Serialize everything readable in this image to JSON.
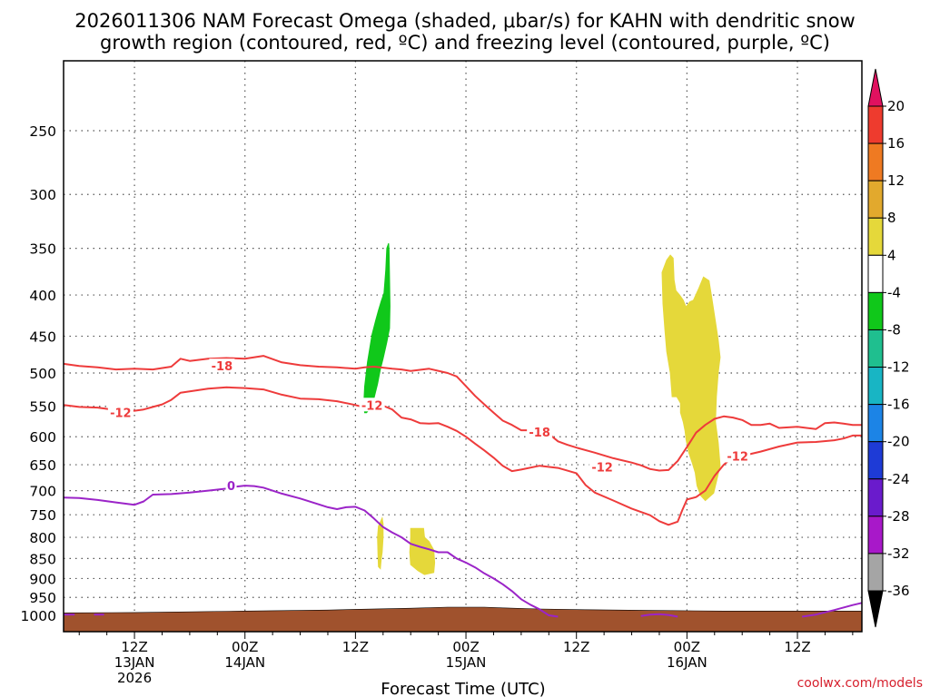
{
  "chart_data": {
    "type": "time-height",
    "title": [
      "2026011306 NAM Forecast Omega (shaded, μbar/s) for KAHN with dendritic snow",
      "growth region (contoured, red, ºC) and freezing level (contoured, purple, ºC)"
    ],
    "xlabel": "Forecast Time (UTC)",
    "credit": "coolwx.com/models",
    "xlim_hours": [
      -1.7,
      85
    ],
    "ylim_hpa": [
      1010,
      180
    ],
    "yticks": [
      250,
      300,
      350,
      400,
      450,
      500,
      550,
      600,
      650,
      700,
      750,
      800,
      850,
      900,
      950,
      1000
    ],
    "xticks": [
      {
        "hour": 6,
        "labels": [
          "12Z",
          "13JAN",
          "2026"
        ]
      },
      {
        "hour": 18,
        "labels": [
          "00Z",
          "14JAN"
        ]
      },
      {
        "hour": 30,
        "labels": [
          "12Z"
        ]
      },
      {
        "hour": 42,
        "labels": [
          "00Z",
          "15JAN"
        ]
      },
      {
        "hour": 54,
        "labels": [
          "12Z"
        ]
      },
      {
        "hour": 66,
        "labels": [
          "00Z",
          "16JAN"
        ]
      },
      {
        "hour": 78,
        "labels": [
          "12Z"
        ]
      }
    ],
    "colorbar": {
      "labels": [
        "20",
        "16",
        "12",
        "8",
        "4",
        "-4",
        "-8",
        "-12",
        "-16",
        "-20",
        "-24",
        "-28",
        "-32",
        "-36"
      ],
      "colors": [
        "#e0115f",
        "#ee3b2e",
        "#ef7a22",
        "#e2a92d",
        "#e5d83a",
        "#ffffff",
        "#10c81a",
        "#1fbf8f",
        "#18b5c4",
        "#1c84e6",
        "#1e3bd6",
        "#6a1bcc",
        "#a818c9",
        "#a5a5a5",
        "#000000"
      ]
    },
    "series": [
      {
        "name": "-18",
        "color": "#ee3b3b",
        "label_at": {
          "hour": 15.5,
          "p": 490
        },
        "points": [
          [
            -1.7,
            487
          ],
          [
            0,
            490
          ],
          [
            2,
            492
          ],
          [
            4,
            495
          ],
          [
            6,
            494
          ],
          [
            8,
            495
          ],
          [
            10,
            491
          ],
          [
            11,
            480
          ],
          [
            12,
            483
          ],
          [
            14,
            480
          ],
          [
            16,
            479
          ],
          [
            18,
            480
          ],
          [
            20,
            476
          ],
          [
            22,
            485
          ],
          [
            24,
            489
          ],
          [
            26,
            491
          ],
          [
            28,
            492
          ],
          [
            30,
            494
          ],
          [
            31,
            492
          ],
          [
            32,
            491
          ],
          [
            34,
            494
          ],
          [
            35,
            495
          ],
          [
            36,
            497
          ],
          [
            38,
            494
          ],
          [
            40,
            500
          ],
          [
            41,
            505
          ],
          [
            42,
            519
          ],
          [
            43,
            534
          ],
          [
            44,
            547
          ],
          [
            45,
            560
          ],
          [
            46,
            573
          ],
          [
            47,
            580
          ],
          [
            48,
            589
          ],
          [
            50,
            589
          ],
          [
            51,
            595
          ],
          [
            52,
            608
          ],
          [
            53,
            614
          ],
          [
            54,
            619
          ],
          [
            56,
            628
          ],
          [
            58,
            638
          ],
          [
            60,
            646
          ],
          [
            61,
            651
          ],
          [
            62,
            658
          ],
          [
            63,
            661
          ],
          [
            64,
            660
          ],
          [
            65,
            643
          ],
          [
            66,
            618
          ],
          [
            67,
            593
          ],
          [
            68,
            580
          ],
          [
            69,
            570
          ],
          [
            70,
            566
          ],
          [
            71,
            568
          ],
          [
            72,
            572
          ],
          [
            73,
            580
          ],
          [
            74,
            580
          ],
          [
            75,
            578
          ],
          [
            76,
            585
          ],
          [
            78,
            583
          ],
          [
            80,
            587
          ],
          [
            81,
            577
          ],
          [
            82,
            576
          ],
          [
            83,
            578
          ],
          [
            84,
            580
          ],
          [
            85,
            580
          ]
        ]
      },
      {
        "name": "-12",
        "color": "#ee3b3b",
        "label_at": {
          "hour": 4.5,
          "p": 560
        },
        "points": [
          [
            -1.7,
            548
          ],
          [
            0,
            551
          ],
          [
            2,
            552
          ],
          [
            4,
            556
          ],
          [
            6,
            557
          ],
          [
            7,
            555
          ],
          [
            8,
            551
          ],
          [
            9,
            547
          ],
          [
            10,
            540
          ],
          [
            11,
            529
          ],
          [
            12,
            527
          ],
          [
            14,
            523
          ],
          [
            16,
            521
          ],
          [
            18,
            522
          ],
          [
            20,
            524
          ],
          [
            22,
            532
          ],
          [
            24,
            538
          ],
          [
            26,
            539
          ],
          [
            28,
            542
          ],
          [
            30,
            548
          ],
          [
            31,
            552
          ],
          [
            32,
            551
          ],
          [
            33,
            549
          ],
          [
            34,
            555
          ],
          [
            35,
            568
          ],
          [
            36,
            571
          ],
          [
            37,
            577
          ],
          [
            38,
            578
          ],
          [
            39,
            577
          ],
          [
            40,
            583
          ],
          [
            41,
            590
          ],
          [
            42,
            600
          ],
          [
            43,
            612
          ],
          [
            44,
            624
          ],
          [
            45,
            637
          ],
          [
            46,
            652
          ],
          [
            47,
            662
          ],
          [
            48,
            659
          ],
          [
            50,
            652
          ],
          [
            52,
            656
          ],
          [
            54,
            666
          ],
          [
            55,
            689
          ],
          [
            56,
            704
          ],
          [
            58,
            720
          ],
          [
            60,
            737
          ],
          [
            62,
            751
          ],
          [
            63,
            764
          ],
          [
            64,
            772
          ],
          [
            65,
            765
          ],
          [
            65.5,
            740
          ],
          [
            66,
            718
          ],
          [
            67,
            713
          ],
          [
            68,
            700
          ],
          [
            69,
            671
          ],
          [
            70,
            650
          ],
          [
            71,
            636
          ],
          [
            72,
            634
          ],
          [
            73,
            630
          ],
          [
            74,
            626
          ],
          [
            76,
            617
          ],
          [
            78,
            610
          ],
          [
            80,
            609
          ],
          [
            82,
            606
          ],
          [
            83,
            603
          ],
          [
            84,
            598
          ],
          [
            85,
            598
          ]
        ]
      },
      {
        "name": "0",
        "color": "#9b24c8",
        "label_at": {
          "hour": 16.5,
          "p": 690
        },
        "points": [
          [
            -1.7,
            714
          ],
          [
            0,
            715
          ],
          [
            2,
            719
          ],
          [
            4,
            724
          ],
          [
            6,
            729
          ],
          [
            7,
            722
          ],
          [
            8,
            708
          ],
          [
            10,
            707
          ],
          [
            12,
            704
          ],
          [
            14,
            700
          ],
          [
            16,
            696
          ],
          [
            17,
            692
          ],
          [
            18,
            690
          ],
          [
            19,
            691
          ],
          [
            20,
            694
          ],
          [
            22,
            706
          ],
          [
            24,
            716
          ],
          [
            26,
            728
          ],
          [
            27,
            734
          ],
          [
            28,
            738
          ],
          [
            29,
            734
          ],
          [
            30,
            733
          ],
          [
            31,
            741
          ],
          [
            32,
            758
          ],
          [
            33,
            777
          ],
          [
            34,
            789
          ],
          [
            35,
            800
          ],
          [
            36,
            815
          ],
          [
            37,
            822
          ],
          [
            38,
            828
          ],
          [
            39,
            835
          ],
          [
            40,
            835
          ],
          [
            41,
            850
          ],
          [
            42,
            860
          ],
          [
            43,
            872
          ],
          [
            44,
            887
          ],
          [
            45,
            900
          ],
          [
            46,
            915
          ],
          [
            47,
            933
          ],
          [
            48,
            955
          ],
          [
            49,
            970
          ],
          [
            50,
            983
          ],
          [
            51,
            1000
          ],
          [
            52,
            1004
          ]
        ]
      },
      {
        "name": "0b",
        "color": "#9b24c8",
        "points": [
          [
            61,
            1002
          ],
          [
            62,
            998
          ],
          [
            63,
            997
          ],
          [
            64,
            999
          ],
          [
            65,
            1004
          ]
        ]
      },
      {
        "name": "0c",
        "color": "#9b24c8",
        "points": [
          [
            78.5,
            1004
          ],
          [
            80,
            998
          ],
          [
            82,
            985
          ],
          [
            84,
            971
          ],
          [
            85,
            965
          ]
        ]
      },
      {
        "name": "0d",
        "color": "#9b24c8",
        "points": [
          [
            -1.7,
            998
          ],
          [
            -0.5,
            998
          ]
        ]
      },
      {
        "name": "0e",
        "color": "#9b24c8",
        "points": [
          [
            1.6,
            998
          ],
          [
            2.7,
            998
          ]
        ]
      }
    ],
    "omega_areas": [
      {
        "value": -8,
        "color": "#10c81a",
        "points": [
          [
            30.9,
            548
          ],
          [
            31,
            520
          ],
          [
            31.3,
            485
          ],
          [
            31.8,
            448
          ],
          [
            32.2,
            430
          ],
          [
            32.5,
            418
          ],
          [
            32.8,
            407
          ],
          [
            33.1,
            398
          ],
          [
            33.2,
            385
          ],
          [
            33.3,
            372
          ],
          [
            33.4,
            350
          ],
          [
            33.6,
            345
          ],
          [
            33.65,
            352
          ],
          [
            33.7,
            380
          ],
          [
            33.75,
            413
          ],
          [
            33.7,
            440
          ],
          [
            33.4,
            458
          ],
          [
            33.0,
            480
          ],
          [
            32.7,
            495
          ],
          [
            32.4,
            516
          ],
          [
            32.0,
            538
          ],
          [
            31.6,
            553
          ],
          [
            31.2,
            560
          ],
          [
            31.0,
            560
          ]
        ]
      },
      {
        "value": 4,
        "color": "#e5d83a",
        "points": [
          [
            63.3,
            375
          ],
          [
            63.8,
            362
          ],
          [
            64.2,
            357
          ],
          [
            64.5,
            360
          ],
          [
            64.6,
            383
          ],
          [
            64.8,
            395
          ],
          [
            65.2,
            400
          ],
          [
            65.6,
            406
          ],
          [
            65.9,
            414
          ],
          [
            66.3,
            408
          ],
          [
            66.7,
            406
          ],
          [
            67.3,
            392
          ],
          [
            67.8,
            380
          ],
          [
            68.4,
            384
          ],
          [
            68.7,
            403
          ],
          [
            69.1,
            432
          ],
          [
            69.4,
            455
          ],
          [
            69.6,
            478
          ],
          [
            69.4,
            500
          ],
          [
            69.2,
            535
          ],
          [
            69.1,
            575
          ],
          [
            69.4,
            610
          ],
          [
            69.6,
            652
          ],
          [
            69.3,
            675
          ],
          [
            68.9,
            705
          ],
          [
            68.0,
            720
          ],
          [
            67.5,
            710
          ],
          [
            67.1,
            690
          ],
          [
            66.9,
            665
          ],
          [
            66.6,
            648
          ],
          [
            66.2,
            628
          ],
          [
            65.9,
            605
          ],
          [
            65.8,
            590
          ],
          [
            65.6,
            575
          ],
          [
            65.3,
            560
          ],
          [
            65.3,
            545
          ],
          [
            64.9,
            535
          ],
          [
            64.4,
            535
          ],
          [
            64.2,
            500
          ],
          [
            63.8,
            470
          ],
          [
            63.6,
            440
          ],
          [
            63.4,
            410
          ]
        ]
      },
      {
        "value": 4,
        "color": "#e5d83a",
        "points": [
          [
            32.5,
            775
          ],
          [
            32.9,
            757
          ],
          [
            33.0,
            770
          ],
          [
            33.0,
            800
          ],
          [
            32.9,
            835
          ],
          [
            32.8,
            850
          ],
          [
            32.7,
            875
          ],
          [
            32.5,
            870
          ],
          [
            32.45,
            840
          ],
          [
            32.4,
            800
          ]
        ]
      },
      {
        "value": 4,
        "color": "#e5d83a",
        "points": [
          [
            36.0,
            780
          ],
          [
            37.4,
            780
          ],
          [
            37.5,
            800
          ],
          [
            38.0,
            810
          ],
          [
            38.5,
            830
          ],
          [
            38.6,
            860
          ],
          [
            38.5,
            885
          ],
          [
            37.5,
            890
          ],
          [
            36.8,
            880
          ],
          [
            36.0,
            865
          ],
          [
            35.9,
            835
          ],
          [
            36.0,
            800
          ]
        ]
      }
    ],
    "terrain": {
      "color": "#a0522d",
      "points": [
        [
          -1.7,
          993
        ],
        [
          6,
          992
        ],
        [
          18,
          988
        ],
        [
          27,
          985
        ],
        [
          30,
          983
        ],
        [
          36,
          980
        ],
        [
          40,
          977
        ],
        [
          44,
          977
        ],
        [
          46,
          979
        ],
        [
          50,
          982
        ],
        [
          55,
          984
        ],
        [
          62,
          986
        ],
        [
          70,
          988
        ],
        [
          85,
          988
        ]
      ]
    }
  }
}
